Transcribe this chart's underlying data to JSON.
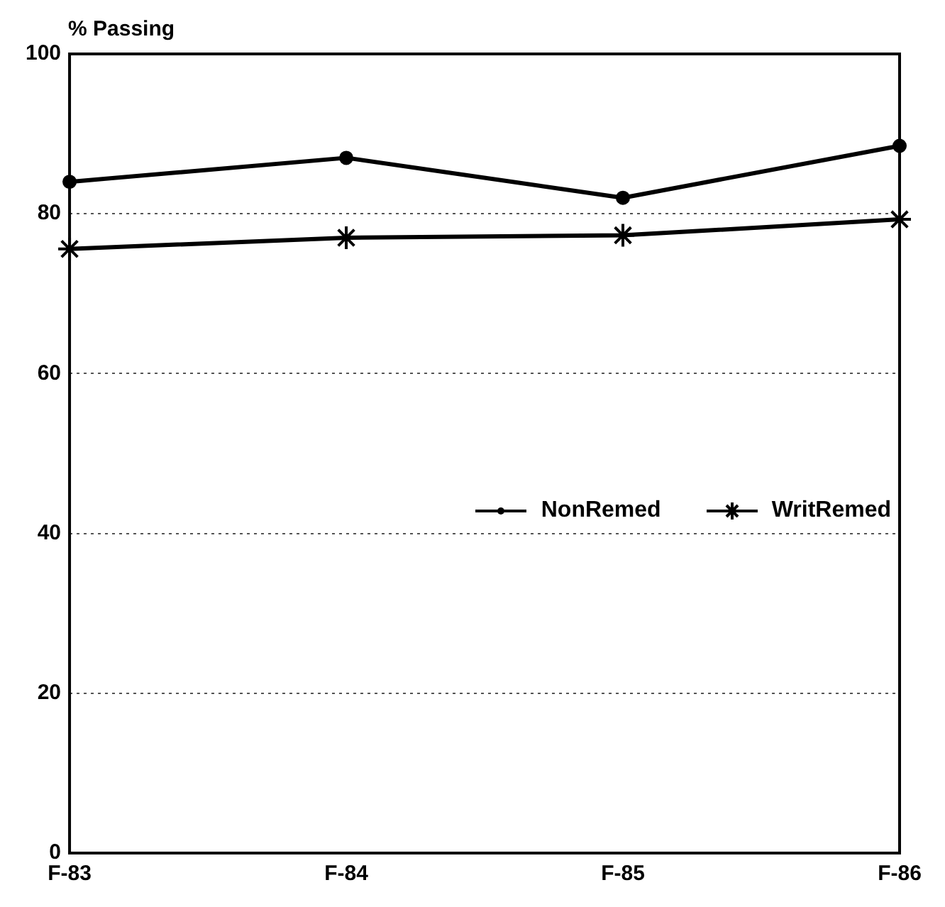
{
  "chart_data": {
    "type": "line",
    "ylabel": "% Passing",
    "categories": [
      "F-83",
      "F-84",
      "F-85",
      "F-86"
    ],
    "series": [
      {
        "name": "NonRemed",
        "color": "#000000",
        "marker": "circle",
        "values": [
          84,
          87,
          82,
          88.5
        ]
      },
      {
        "name": "WritRemed",
        "color": "#000000",
        "marker": "cross",
        "values": [
          75.6,
          77,
          77.3,
          79.3
        ]
      }
    ],
    "ylim": [
      0,
      100
    ],
    "yticks": [
      0,
      20,
      40,
      60,
      80,
      100
    ],
    "grid": "y",
    "legend": "right",
    "line_style": "solid"
  }
}
